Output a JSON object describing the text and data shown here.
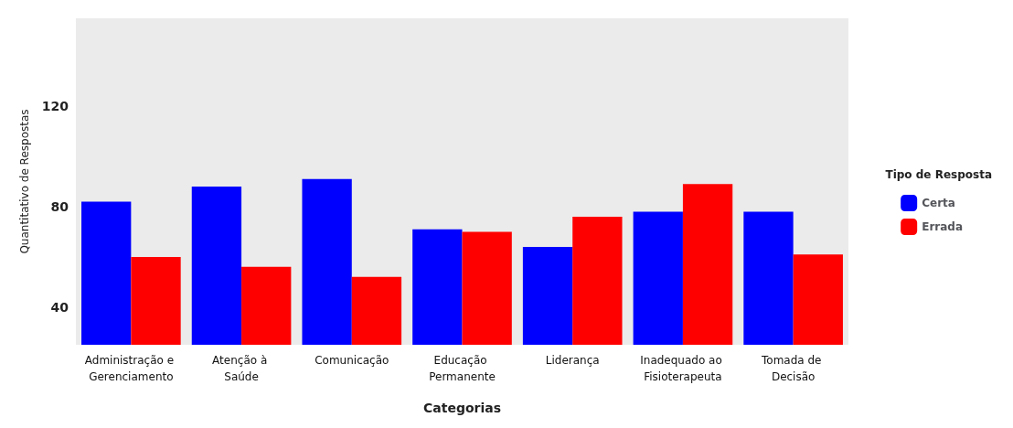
{
  "chart_data": {
    "type": "bar",
    "xlabel": "Categorias",
    "ylabel": "Quantitativo de Respostas",
    "legend_title": "Tipo de Resposta",
    "categories": [
      "Administração e Gerenciamento",
      "Atenção à Saúde",
      "Comunicação",
      "Educação Permanente",
      "Liderança",
      "Inadequado ao Fisioterapeuta",
      "Tomada de Decisão"
    ],
    "series": [
      {
        "name": "Certa",
        "color": "#0000ff",
        "values": [
          82,
          88,
          91,
          71,
          64,
          78,
          78
        ]
      },
      {
        "name": "Errada",
        "color": "#ff0000",
        "values": [
          60,
          56,
          52,
          70,
          76,
          89,
          61
        ]
      }
    ],
    "ylim": [
      25,
      155
    ],
    "yticks": [
      40,
      80,
      120
    ],
    "grid": false,
    "legend": "right"
  }
}
